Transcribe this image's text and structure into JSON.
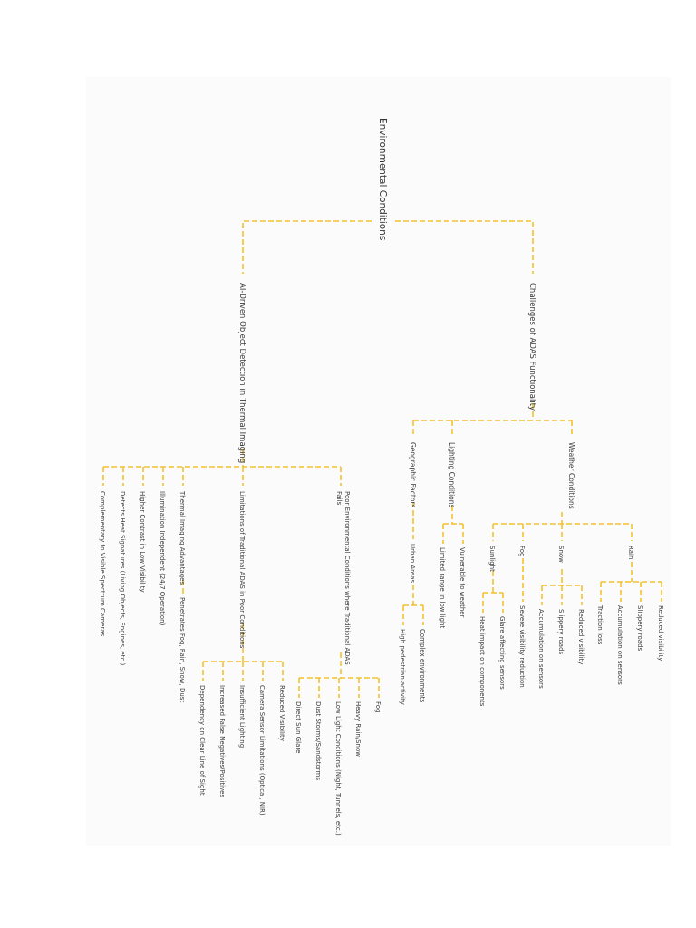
{
  "colors": {
    "connector": "#f2c230",
    "text": "#3a3a3a",
    "background": "#fbfbfb"
  },
  "root": "Environmental Conditions",
  "challenges": {
    "label": "Challenges of ADAS Functionality",
    "weather": {
      "label": "Weather Conditions",
      "rain": {
        "label": "Rain",
        "items": [
          "Reduced visibility",
          "Slippery roads",
          "Accumulation on sensors",
          "Traction loss"
        ]
      },
      "snow": {
        "label": "Snow",
        "items": [
          "Reduced visibility",
          "Slippery roads",
          "Accumulation on sensors"
        ]
      },
      "fog": {
        "label": "Fog",
        "items": [
          "Severe visibility reduction"
        ]
      },
      "sunlight": {
        "label": "Sunlight",
        "items": [
          "Glare affecting sensors",
          "Heat impact on components"
        ]
      }
    },
    "lighting": {
      "label": "Lighting Conditions",
      "items": [
        "Vulnerable to weather",
        "Limited range in low light"
      ]
    },
    "geographic": {
      "label": "Geographic Factors",
      "urban": {
        "label": "Urban Areas",
        "items": [
          "Complex environments",
          "High pedestrian activity"
        ]
      }
    }
  },
  "thermal": {
    "label": "AI-Driven Object Detection in Thermal Imaging",
    "poor": {
      "label_line1": "Poor Environmental Conditions where Traditional ADAS",
      "label_line2": "Fails",
      "items": [
        "Fog",
        "Heavy Rain/Snow",
        "Low Light Conditions (Night, Tunnels, etc.)",
        "Dust Storms/Sandstorms",
        "Direct Sun Glare"
      ]
    },
    "limitations": {
      "label": "Limitations of Traditional ADAS in Poor Conditions",
      "items": [
        "Reduced Visibility",
        "Camera Sensor Limitations (Optical, NIR)",
        "Insufficient Lighting",
        "Increased False Negatives/Positives",
        "Dependency on Clear Line of Sight"
      ]
    },
    "advantages": {
      "label": "Thermal Imaging Advantages",
      "items": [
        "Penetrates Fog, Rain, Snow, Dust"
      ]
    },
    "leaves": [
      "Illumination Independent (24/7 Operation)",
      "Higher Contrast in Low Visibility",
      "Detects Heat Signatures (Living Objects, Engines, etc.)",
      "Complementary to Visible Spectrum Cameras"
    ]
  }
}
